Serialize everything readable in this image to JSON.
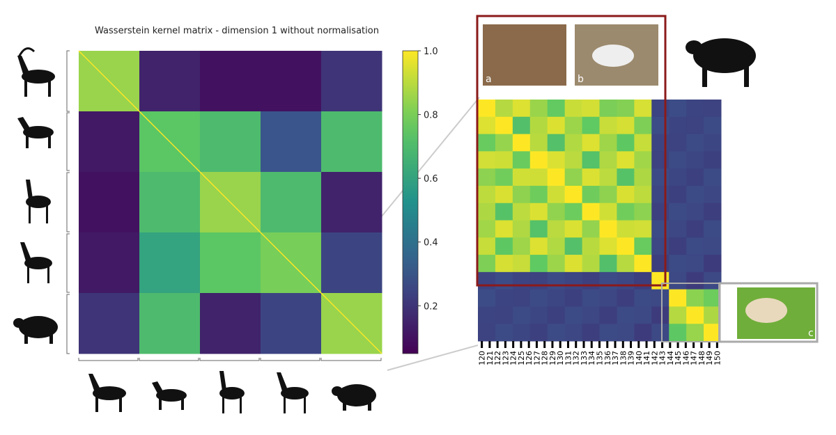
{
  "chart_data": {
    "type": "heatmap",
    "title": "Wasserstein kernel matrix - dimension 1 without normalisation",
    "values": [
      [
        0.85,
        0.15,
        0.1,
        0.1,
        0.2
      ],
      [
        0.12,
        0.75,
        0.7,
        0.3,
        0.7
      ],
      [
        0.1,
        0.7,
        0.85,
        0.7,
        0.15
      ],
      [
        0.12,
        0.6,
        0.75,
        0.8,
        0.25
      ],
      [
        0.2,
        0.7,
        0.15,
        0.25,
        0.85
      ]
    ],
    "zlim": [
      0.05,
      1.0
    ],
    "zticks": [
      0.2,
      0.4,
      0.6,
      0.8,
      {
        "value": 1.0,
        "label": "1.0"
      }
    ]
  },
  "zoom": {
    "xticks": [
      120,
      121,
      122,
      123,
      124,
      125,
      126,
      127,
      128,
      129,
      130,
      131,
      132,
      133,
      134,
      135,
      136,
      137,
      138,
      139,
      140,
      141,
      142,
      143,
      144,
      145,
      146,
      147,
      148,
      149,
      150
    ]
  },
  "photos": {
    "a": "a",
    "b": "b",
    "c": "c"
  }
}
